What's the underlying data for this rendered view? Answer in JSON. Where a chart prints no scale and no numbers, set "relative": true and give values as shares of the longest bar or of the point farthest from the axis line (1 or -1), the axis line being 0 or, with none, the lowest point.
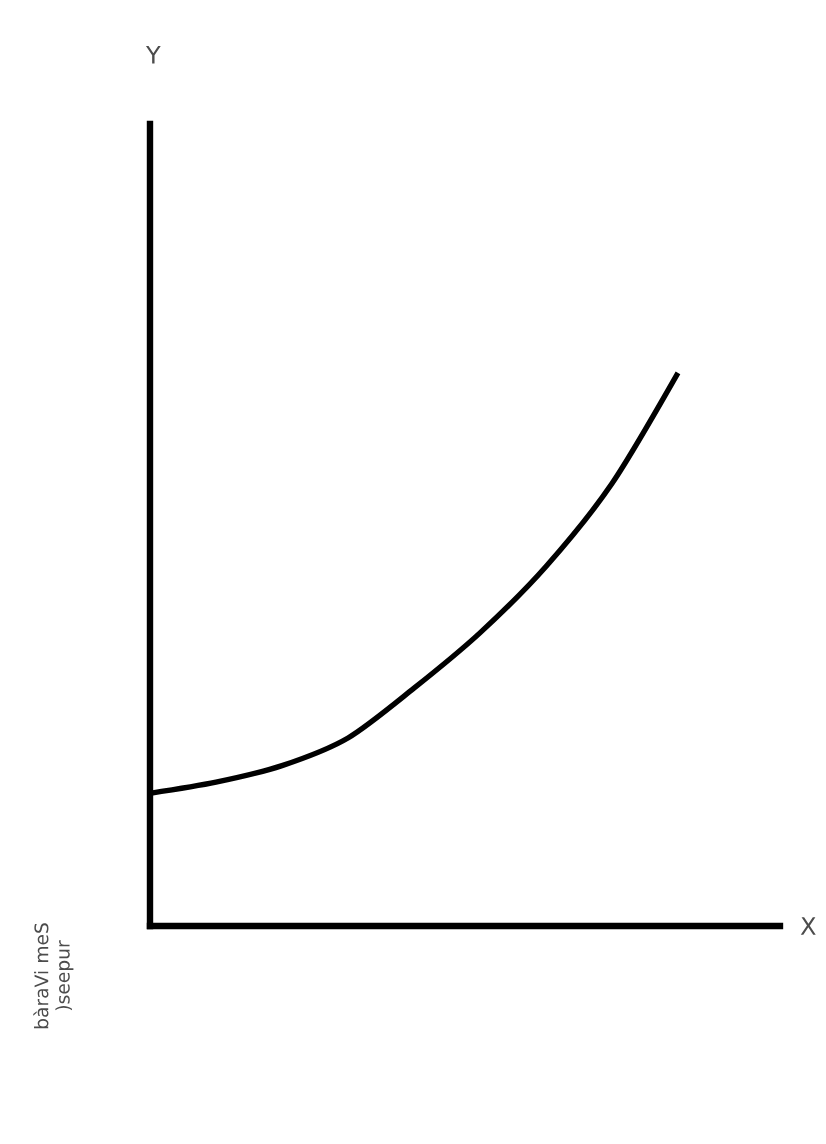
{
  "chart_data": {
    "type": "line",
    "relative": true,
    "xlabel": "X",
    "annotations": [
      "bàraVi meS )seepur",
      "Y"
    ],
    "categories": [
      null,
      null,
      null,
      null,
      null,
      null,
      null,
      null,
      null
    ],
    "series": [
      {
        "color": "#000000",
        "values": [
          0.24,
          0.26,
          0.29,
          0.34,
          0.43,
          0.53,
          0.65,
          0.8,
          1
        ]
      }
    ]
  }
}
